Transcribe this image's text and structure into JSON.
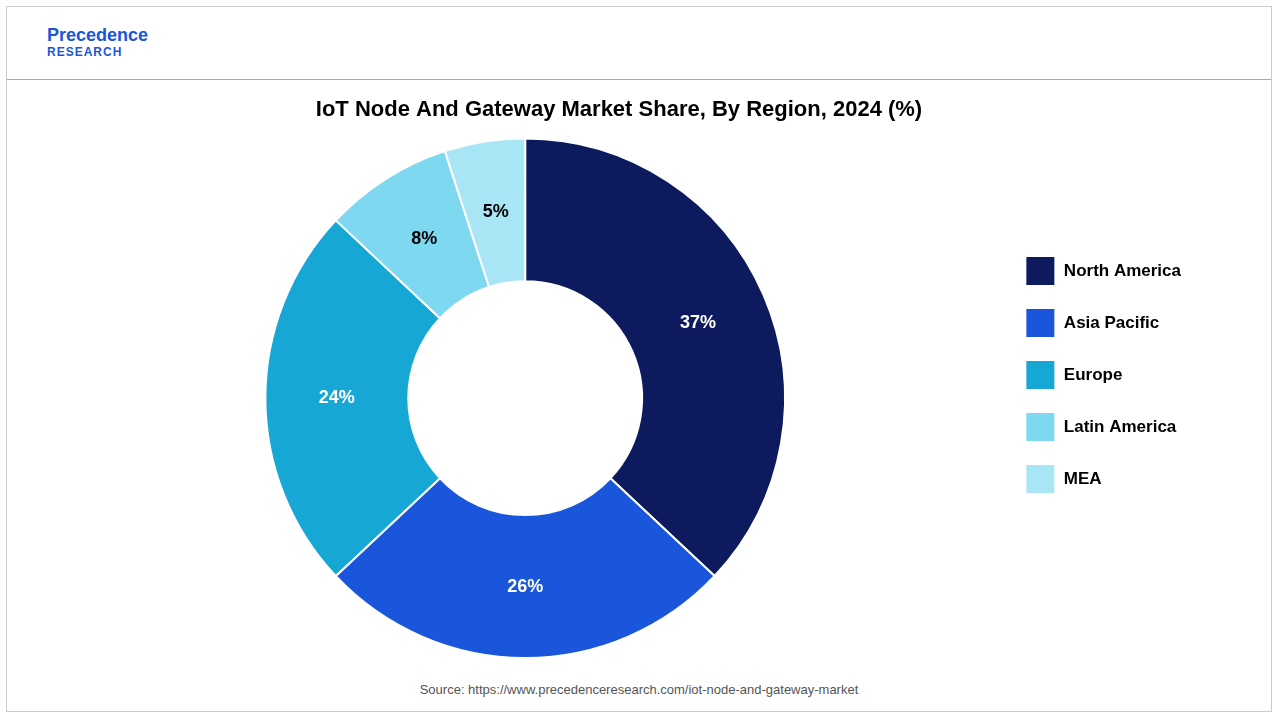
{
  "chart_data": {
    "type": "doughnut",
    "title": "IoT Node And Gateway Market Share, By Region, 2024 (%)",
    "categories": [
      "North America",
      "Asia Pacific",
      "Europe",
      "Latin America",
      "MEA"
    ],
    "values": [
      37,
      26,
      24,
      8,
      5
    ],
    "value_labels": [
      "37%",
      "26%",
      "24%",
      "8%",
      "5%"
    ],
    "colors": [
      "#0d1b5e",
      "#1a56db",
      "#17a7d4",
      "#7dd8f0",
      "#a8e6f5"
    ],
    "data_labels": true,
    "legend": "right",
    "annotations": [
      "Precedence",
      "RESEARCH",
      "Source: https://www.precedenceresearch.com/iot-node-and-gateway-market"
    ]
  }
}
